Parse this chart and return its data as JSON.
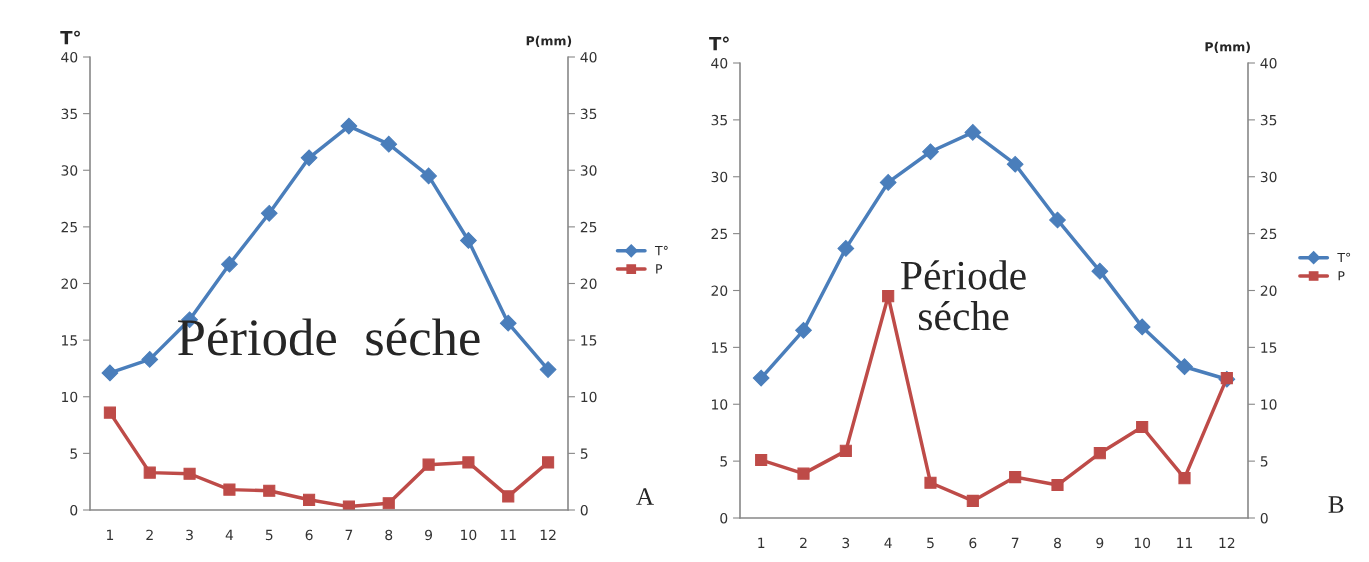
{
  "chart_data": [
    {
      "type": "line",
      "ylabel": "T°",
      "y2label": "P(mm)",
      "categories": [
        "1",
        "2",
        "3",
        "4",
        "5",
        "6",
        "7",
        "8",
        "9",
        "10",
        "11",
        "12"
      ],
      "series": [
        {
          "name": "T°",
          "color": "#4a7ebb",
          "marker": "diamond",
          "values": [
            12.1,
            13.3,
            16.8,
            21.7,
            26.2,
            31.1,
            33.9,
            32.3,
            29.5,
            23.8,
            16.5,
            12.4
          ]
        },
        {
          "name": "P",
          "color": "#be4b48",
          "marker": "square",
          "axis": "y2",
          "values": [
            8.6,
            3.3,
            3.2,
            1.8,
            1.7,
            0.9,
            0.3,
            0.6,
            4.0,
            4.2,
            1.2,
            4.2
          ]
        }
      ],
      "ylim": [
        0,
        40
      ],
      "yticks": [
        0,
        5,
        10,
        15,
        20,
        25,
        30,
        35,
        40
      ],
      "y2lim": [
        0,
        40
      ],
      "y2ticks": [
        0,
        5,
        10,
        15,
        20,
        25,
        30,
        35,
        40
      ],
      "legend": "right",
      "annotations": [
        "Période  séche",
        "A"
      ]
    },
    {
      "type": "line",
      "ylabel": "T°",
      "y2label": "P(mm)",
      "categories": [
        "1",
        "2",
        "3",
        "4",
        "5",
        "6",
        "7",
        "8",
        "9",
        "10",
        "11",
        "12"
      ],
      "series": [
        {
          "name": "T°",
          "color": "#4a7ebb",
          "marker": "diamond",
          "values": [
            12.3,
            16.5,
            23.7,
            29.5,
            32.2,
            33.9,
            31.1,
            26.2,
            21.7,
            16.8,
            13.3,
            12.2
          ]
        },
        {
          "name": "P",
          "color": "#be4b48",
          "marker": "square",
          "axis": "y2",
          "values": [
            5.1,
            3.9,
            5.9,
            19.5,
            3.1,
            1.5,
            3.6,
            2.9,
            5.7,
            8.0,
            3.5,
            12.3
          ]
        }
      ],
      "ylim": [
        0,
        40
      ],
      "yticks": [
        0,
        5,
        10,
        15,
        20,
        25,
        30,
        35,
        40
      ],
      "y2lim": [
        0,
        40
      ],
      "y2ticks": [
        0,
        5,
        10,
        15,
        20,
        25,
        30,
        35,
        40
      ],
      "legend": "right",
      "annotations": [
        "Période\nséche",
        "B"
      ]
    }
  ]
}
